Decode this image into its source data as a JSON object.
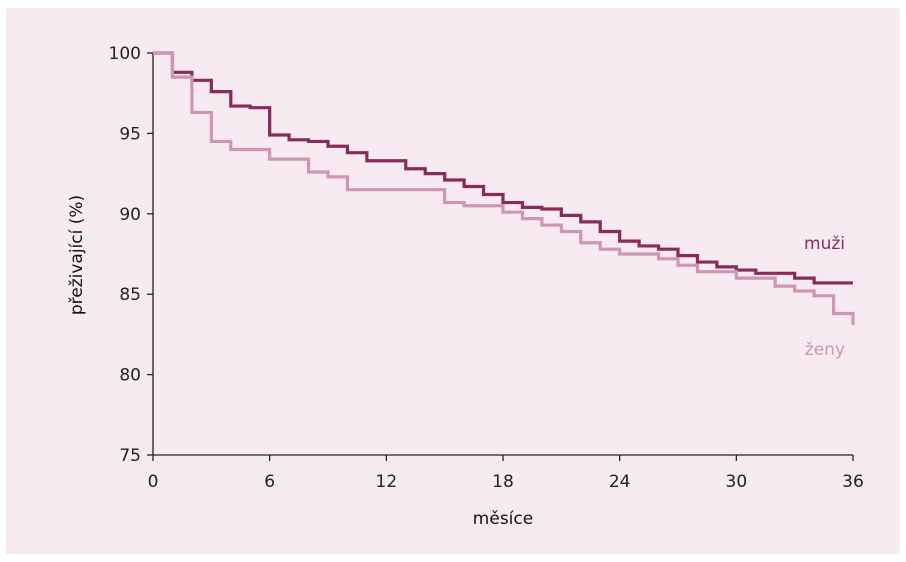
{
  "chart_data": {
    "type": "line",
    "step": true,
    "xlabel": "měsíce",
    "ylabel": "přeživající (%)",
    "xlim": [
      0,
      36
    ],
    "ylim": [
      75,
      100
    ],
    "xticks": [
      "0",
      "6",
      "12",
      "18",
      "24",
      "30",
      "36"
    ],
    "yticks": [
      "100",
      "95",
      "90",
      "85",
      "80",
      "75"
    ],
    "grid": false,
    "series": [
      {
        "name": "muži",
        "color": "#8a2a5a",
        "x": [
          0,
          1,
          2,
          3,
          4,
          5,
          6,
          7,
          8,
          9,
          10,
          11,
          13,
          14,
          15,
          16,
          17,
          18,
          19,
          20,
          21,
          22,
          23,
          24,
          25,
          26,
          27,
          28,
          29,
          30,
          31,
          33,
          34,
          36
        ],
        "y": [
          100,
          98.8,
          98.3,
          97.6,
          96.7,
          96.6,
          94.9,
          94.6,
          94.5,
          94.2,
          93.8,
          93.3,
          92.8,
          92.5,
          92.1,
          91.7,
          91.2,
          90.7,
          90.4,
          90.3,
          89.9,
          89.5,
          88.9,
          88.3,
          88.0,
          87.8,
          87.4,
          87.0,
          86.7,
          86.5,
          86.3,
          86.0,
          85.7,
          85.7
        ]
      },
      {
        "name": "ženy",
        "color": "#cf96b2",
        "x": [
          0,
          1,
          2,
          3,
          4,
          6,
          8,
          9,
          10,
          15,
          16,
          18,
          19,
          20,
          21,
          22,
          23,
          24,
          26,
          27,
          28,
          30,
          32,
          33,
          34,
          35,
          36
        ],
        "y": [
          100,
          98.5,
          96.3,
          94.5,
          94.0,
          93.4,
          92.6,
          92.3,
          91.5,
          90.7,
          90.5,
          90.1,
          89.7,
          89.3,
          88.9,
          88.2,
          87.8,
          87.5,
          87.2,
          86.8,
          86.4,
          86.0,
          85.5,
          85.2,
          84.9,
          83.8,
          83.1
        ]
      }
    ]
  }
}
